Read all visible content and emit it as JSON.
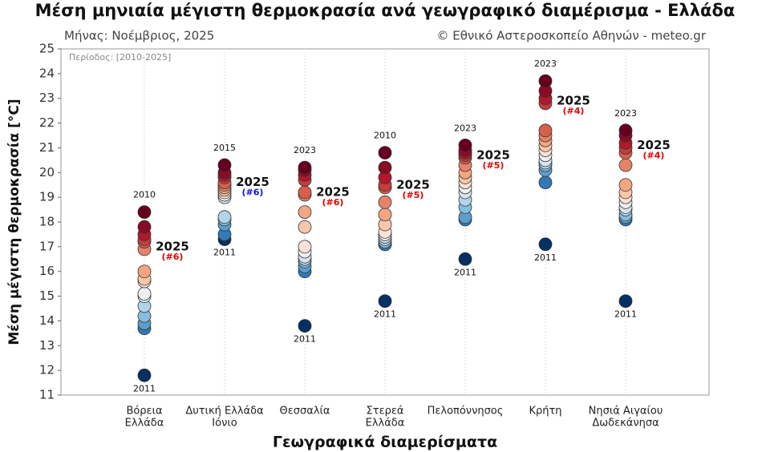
{
  "chart_data": {
    "type": "strip",
    "title": "Μέση μηνιαία μέγιστη θερμοκρασία ανά γεωγραφικό διαμέρισμα - Ελλάδα",
    "subtitle_left": "Μήνας: Νοέμβριος, 2025",
    "subtitle_right": "© Εθνικό Αστεροσκοπείο Αθηνών - meteo.gr",
    "period": "Περίοδος: [2010-2025]",
    "y_label": "Μέση μέγιστη θερμοκρασία [°C]",
    "x_label": "Γεωγραφικά διαμερίσματα",
    "ylim": [
      11,
      25
    ],
    "yticks": [
      11,
      12,
      13,
      14,
      15,
      16,
      17,
      18,
      19,
      20,
      21,
      22,
      23,
      24,
      25
    ],
    "grid": true,
    "palette": [
      "#67001f",
      "#8a0b25",
      "#b2182b",
      "#c43c3c",
      "#d6604d",
      "#e5836a",
      "#f4a582",
      "#f8c6aa",
      "#fbe2d4",
      "#eef0f3",
      "#d3e5f1",
      "#b3d3e8",
      "#86bcdc",
      "#5a9fcc",
      "#3478b5",
      "#053061"
    ],
    "groups": [
      {
        "category": [
          "Βόρεια",
          "Ελλάδα"
        ],
        "values": [
          18.4,
          17.8,
          17.5,
          17.3,
          17.2,
          16.0,
          15.7,
          15.6,
          15.1,
          15.0,
          14.6,
          14.2,
          13.9,
          13.7,
          11.8
        ],
        "max_label": "2010",
        "min_label": "2011",
        "current_value": 16.9,
        "current_label": "2025",
        "rank_label": "(#6)",
        "rank_color": "#e00000"
      },
      {
        "category": [
          "Δυτική Ελλάδα",
          "Ιόνιο"
        ],
        "values": [
          20.3,
          20.0,
          19.9,
          19.8,
          19.6,
          19.4,
          19.3,
          19.2,
          19.1,
          19.0,
          18.2,
          18.1,
          17.9,
          17.5,
          17.3
        ],
        "max_label": "2015",
        "min_label": "2011",
        "current_value": 19.5,
        "current_label": "2025",
        "rank_label": "(#6)",
        "rank_color": "#1010d0"
      },
      {
        "category": [
          "Θεσσαλία"
        ],
        "values": [
          20.2,
          20.1,
          19.9,
          19.7,
          19.2,
          18.4,
          17.8,
          17.0,
          16.8,
          16.6,
          16.5,
          16.4,
          16.2,
          16.0,
          13.8
        ],
        "max_label": "2023",
        "min_label": "2011",
        "current_value": 19.1,
        "current_label": "2025",
        "rank_label": "(#6)",
        "rank_color": "#e00000"
      },
      {
        "category": [
          "Στερεά",
          "Ελλάδα"
        ],
        "values": [
          20.8,
          20.2,
          19.8,
          19.5,
          18.8,
          18.3,
          17.9,
          17.6,
          17.5,
          17.4,
          17.3,
          17.2,
          17.1,
          17.1,
          14.8
        ],
        "max_label": "2010",
        "min_label": "2011",
        "current_value": 19.4,
        "current_label": "2025",
        "rank_label": "(#5)",
        "rank_color": "#e00000"
      },
      {
        "category": [
          "Πελοπόννησος"
        ],
        "values": [
          21.1,
          20.9,
          20.8,
          20.7,
          20.3,
          20.0,
          19.8,
          19.6,
          19.4,
          19.2,
          18.9,
          18.6,
          18.2,
          18.1,
          16.5
        ],
        "max_label": "2023",
        "min_label": "2011",
        "current_value": 20.6,
        "current_label": "2025",
        "rank_label": "(#5)",
        "rank_color": "#e00000"
      },
      {
        "category": [
          "Κρήτη"
        ],
        "values": [
          23.7,
          23.3,
          23.0,
          21.7,
          21.5,
          21.3,
          21.1,
          20.9,
          20.7,
          20.5,
          20.4,
          20.3,
          20.1,
          19.6,
          17.1
        ],
        "max_label": "2023",
        "min_label": "2011",
        "current_value": 22.8,
        "current_label": "2025",
        "rank_label": "(#4)",
        "rank_color": "#e00000"
      },
      {
        "category": [
          "Νησιά Αιγαίου",
          "Δωδεκάνησα"
        ],
        "values": [
          21.7,
          21.5,
          21.2,
          20.8,
          20.3,
          19.5,
          19.2,
          19.0,
          18.8,
          18.6,
          18.5,
          18.3,
          18.2,
          18.1,
          14.8
        ],
        "max_label": "2023",
        "min_label": "2011",
        "current_value": 21.0,
        "current_label": "2025",
        "rank_label": "(#4)",
        "rank_color": "#e00000"
      }
    ]
  }
}
